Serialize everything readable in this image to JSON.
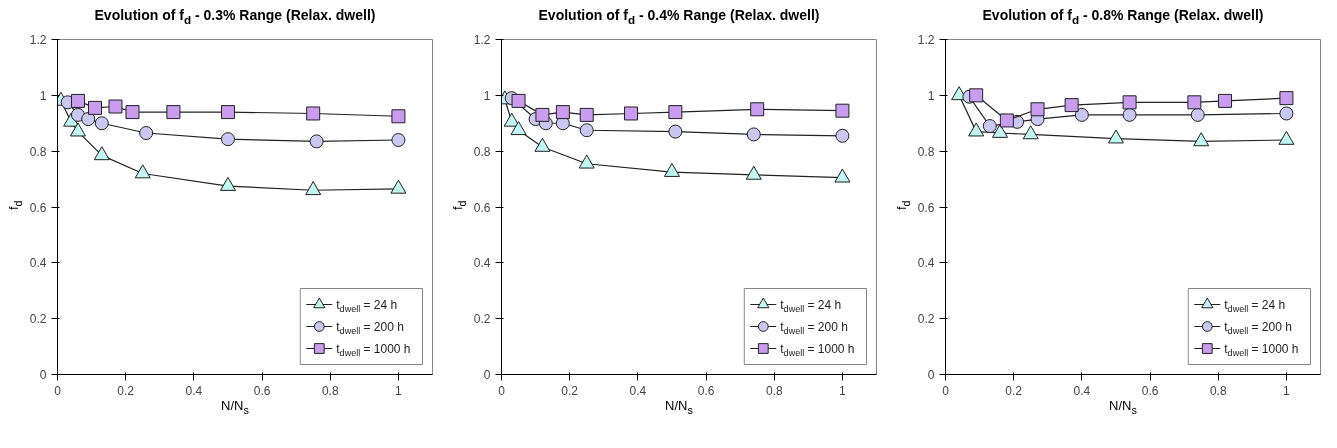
{
  "chart_data": [
    {
      "type": "line",
      "title": "Evolution of f$_{d}$ - 0.3% Range (Relax. dwell)",
      "xlabel": "N/N$_{s}$",
      "ylabel": "f$_{d}$",
      "xlim": [
        0,
        1.1
      ],
      "ylim": [
        0,
        1.2
      ],
      "xticks": [
        0,
        0.2,
        0.4,
        0.6,
        0.8,
        1
      ],
      "yticks": [
        0,
        0.2,
        0.4,
        0.6,
        0.8,
        1,
        1.2
      ],
      "grid": false,
      "legend": "bottom right",
      "series": [
        {
          "name": "t$_{dwell}$ = 24 h",
          "color": "#c0f7f5",
          "marker": "triangle",
          "x": [
            0.01,
            0.04,
            0.06,
            0.13,
            0.25,
            0.5,
            0.75,
            1
          ],
          "values": [
            0.98,
            0.905,
            0.87,
            0.785,
            0.72,
            0.675,
            0.66,
            0.665
          ]
        },
        {
          "name": "t$_{dwell}$ = 200 h",
          "color": "#c8c8f2",
          "marker": "circle",
          "x": [
            0.03,
            0.06,
            0.09,
            0.13,
            0.26,
            0.5,
            0.76,
            1
          ],
          "values": [
            0.975,
            0.93,
            0.915,
            0.9,
            0.865,
            0.843,
            0.835,
            0.84
          ]
        },
        {
          "name": "t$_{dwell}$ = 1000 h",
          "color": "#c99cf0",
          "marker": "square",
          "x": [
            0.06,
            0.11,
            0.17,
            0.22,
            0.34,
            0.5,
            0.75,
            1
          ],
          "values": [
            0.98,
            0.955,
            0.96,
            0.94,
            0.94,
            0.94,
            0.935,
            0.925
          ]
        }
      ]
    },
    {
      "type": "line",
      "title": "Evolution of f$_{d}$ - 0.4% Range (Relax. dwell)",
      "xlabel": "N/N$_{s}$",
      "ylabel": "f$_{d}$",
      "xlim": [
        0,
        1.1
      ],
      "ylim": [
        0,
        1.2
      ],
      "xticks": [
        0,
        0.2,
        0.4,
        0.6,
        0.8,
        1
      ],
      "yticks": [
        0,
        0.2,
        0.4,
        0.6,
        0.8,
        1,
        1.2
      ],
      "grid": false,
      "legend": "bottom right",
      "series": [
        {
          "name": "t$_{dwell}$ = 24 h",
          "color": "#c0f7f5",
          "marker": "triangle",
          "x": [
            0.01,
            0.03,
            0.05,
            0.12,
            0.25,
            0.5,
            0.74,
            1
          ],
          "values": [
            0.985,
            0.905,
            0.875,
            0.815,
            0.755,
            0.725,
            0.715,
            0.705
          ]
        },
        {
          "name": "t$_{dwell}$ = 200 h",
          "color": "#c8c8f2",
          "marker": "circle",
          "x": [
            0.03,
            0.1,
            0.13,
            0.18,
            0.25,
            0.51,
            0.74,
            1
          ],
          "values": [
            0.99,
            0.915,
            0.9,
            0.9,
            0.875,
            0.87,
            0.86,
            0.855
          ]
        },
        {
          "name": "t$_{dwell}$ = 1000 h",
          "color": "#c99cf0",
          "marker": "square",
          "x": [
            0.05,
            0.12,
            0.18,
            0.25,
            0.38,
            0.51,
            0.75,
            1
          ],
          "values": [
            0.98,
            0.93,
            0.94,
            0.93,
            0.935,
            0.94,
            0.95,
            0.945
          ]
        }
      ]
    },
    {
      "type": "line",
      "title": "Evolution of f$_{d}$ - 0.8% Range (Relax. dwell)",
      "xlabel": "N/N$_{s}$",
      "ylabel": "f$_{d}$",
      "xlim": [
        0,
        1.1
      ],
      "ylim": [
        0,
        1.2
      ],
      "xticks": [
        0,
        0.2,
        0.4,
        0.6,
        0.8,
        1
      ],
      "yticks": [
        0,
        0.2,
        0.4,
        0.6,
        0.8,
        1,
        1.2
      ],
      "grid": false,
      "legend": "bottom right",
      "series": [
        {
          "name": "t$_{dwell}$ = 24 h",
          "color": "#c0f7f5",
          "marker": "triangle",
          "x": [
            0.04,
            0.09,
            0.16,
            0.25,
            0.5,
            0.75,
            1
          ],
          "values": [
            1.0,
            0.87,
            0.865,
            0.86,
            0.845,
            0.835,
            0.84
          ]
        },
        {
          "name": "t$_{dwell}$ = 200 h",
          "color": "#c8c8f2",
          "marker": "circle",
          "x": [
            0.07,
            0.13,
            0.21,
            0.27,
            0.4,
            0.54,
            0.74,
            1
          ],
          "values": [
            0.995,
            0.89,
            0.905,
            0.915,
            0.93,
            0.93,
            0.93,
            0.935
          ]
        },
        {
          "name": "t$_{dwell}$ = 1000 h",
          "color": "#c99cf0",
          "marker": "square",
          "x": [
            0.09,
            0.18,
            0.27,
            0.37,
            0.54,
            0.73,
            0.82,
            1
          ],
          "values": [
            1.0,
            0.91,
            0.95,
            0.965,
            0.975,
            0.975,
            0.98,
            0.99
          ]
        }
      ]
    }
  ]
}
